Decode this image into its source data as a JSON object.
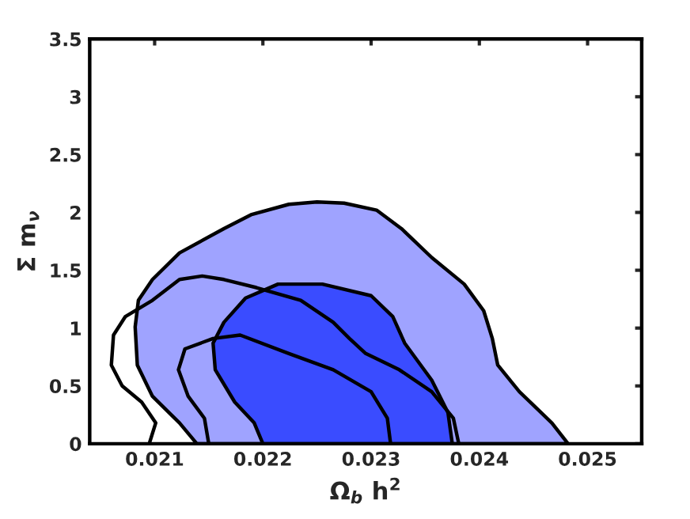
{
  "chart_data": {
    "type": "line",
    "xlabel": "Ω$_{b}$ h$^{2}$",
    "ylabel": "Σ m$_{ν}$",
    "xlim": [
      0.0204,
      0.0255
    ],
    "xticks": [
      0.021,
      0.022,
      0.023,
      0.024,
      0.025
    ],
    "ylim": [
      0,
      3.5
    ],
    "yticks": [
      0,
      0.5,
      1,
      1.5,
      2,
      2.5,
      3,
      3.5
    ],
    "grid": false,
    "series": [
      {
        "type": "area",
        "color": "#9fa3ff",
        "x": [
          0.02482,
          0.02467,
          0.02437,
          0.02417,
          0.02412,
          0.02404,
          0.02386,
          0.02356,
          0.02328,
          0.02305,
          0.02275,
          0.0225,
          0.02224,
          0.02189,
          0.02164,
          0.02123,
          0.02098,
          0.02085,
          0.02082,
          0.02084,
          0.02098,
          0.02123,
          0.02139
        ],
        "values": [
          0,
          0.18,
          0.45,
          0.68,
          0.91,
          1.15,
          1.38,
          1.61,
          1.86,
          2.02,
          2.08,
          2.09,
          2.07,
          1.98,
          1.86,
          1.65,
          1.42,
          1.24,
          1.01,
          0.68,
          0.41,
          0.18,
          0
        ]
      },
      {
        "type": "area",
        "color": "#3a4cff",
        "x": [
          0.02375,
          0.02371,
          0.02356,
          0.02331,
          0.0232,
          0.023,
          0.02255,
          0.02214,
          0.02184,
          0.02164,
          0.02154,
          0.02156,
          0.02174,
          0.02192,
          0.022
        ],
        "values": [
          0,
          0.27,
          0.55,
          0.87,
          1.1,
          1.28,
          1.38,
          1.38,
          1.26,
          1.05,
          0.87,
          0.64,
          0.36,
          0.18,
          0
        ]
      },
      {
        "color": "#000000",
        "x": [
          0.02381,
          0.02376,
          0.02356,
          0.02326,
          0.02295,
          0.0228,
          0.02265,
          0.02235,
          0.02194,
          0.02164,
          0.02144,
          0.02123,
          0.02098,
          0.02073,
          0.02062,
          0.0206,
          0.0207,
          0.02088,
          0.02101,
          0.02095
        ],
        "values": [
          0,
          0.22,
          0.45,
          0.64,
          0.78,
          0.91,
          1.05,
          1.24,
          1.35,
          1.42,
          1.45,
          1.42,
          1.24,
          1.1,
          0.94,
          0.68,
          0.5,
          0.36,
          0.18,
          0
        ]
      },
      {
        "color": "#000000",
        "x": [
          0.02318,
          0.02315,
          0.023,
          0.02265,
          0.02224,
          0.02179,
          0.02154,
          0.02128,
          0.02122,
          0.02131,
          0.02146,
          0.0215
        ],
        "values": [
          0,
          0.22,
          0.45,
          0.64,
          0.78,
          0.94,
          0.91,
          0.82,
          0.64,
          0.41,
          0.22,
          0
        ]
      }
    ]
  }
}
